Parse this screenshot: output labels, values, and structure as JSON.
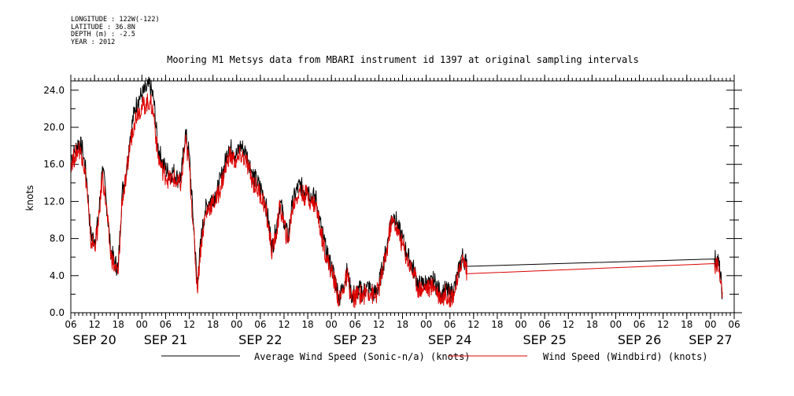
{
  "header": {
    "longitude": "LONGITUDE : 122W(-122)",
    "latitude": "LATITUDE : 36.8N",
    "depth": "DEPTH (m) : -2.5",
    "year": "YEAR : 2012"
  },
  "colors": {
    "series1": "#000000",
    "series2": "#dd0000",
    "axis": "#000000"
  },
  "chart_data": {
    "type": "line",
    "title": "Mooring M1 Metsys data from MBARI instrument id 1397 at original sampling intervals",
    "ylabel": "knots",
    "xlabel": "",
    "xlim": [
      0,
      168
    ],
    "ylim": [
      0,
      25
    ],
    "grid": false,
    "legend_position": "bottom",
    "y_ticks": [
      {
        "v": 0,
        "label": "0.0"
      },
      {
        "v": 4,
        "label": "4.0"
      },
      {
        "v": 8,
        "label": "8.0"
      },
      {
        "v": 12,
        "label": "12.0"
      },
      {
        "v": 16,
        "label": "16.0"
      },
      {
        "v": 20,
        "label": "20.0"
      },
      {
        "v": 24,
        "label": "24.0"
      }
    ],
    "x_ticks": [
      {
        "h": 0,
        "label": "06"
      },
      {
        "h": 6,
        "label": "12"
      },
      {
        "h": 12,
        "label": "18"
      },
      {
        "h": 18,
        "label": "00"
      },
      {
        "h": 24,
        "label": "06"
      },
      {
        "h": 30,
        "label": "12"
      },
      {
        "h": 36,
        "label": "18"
      },
      {
        "h": 42,
        "label": "00"
      },
      {
        "h": 48,
        "label": "06"
      },
      {
        "h": 54,
        "label": "12"
      },
      {
        "h": 60,
        "label": "18"
      },
      {
        "h": 66,
        "label": "00"
      },
      {
        "h": 72,
        "label": "06"
      },
      {
        "h": 78,
        "label": "12"
      },
      {
        "h": 84,
        "label": "18"
      },
      {
        "h": 90,
        "label": "00"
      },
      {
        "h": 96,
        "label": "06"
      },
      {
        "h": 102,
        "label": "12"
      },
      {
        "h": 108,
        "label": "18"
      },
      {
        "h": 114,
        "label": "00"
      },
      {
        "h": 120,
        "label": "06"
      },
      {
        "h": 126,
        "label": "12"
      },
      {
        "h": 132,
        "label": "18"
      },
      {
        "h": 138,
        "label": "00"
      },
      {
        "h": 144,
        "label": "06"
      },
      {
        "h": 150,
        "label": "12"
      },
      {
        "h": 156,
        "label": "18"
      },
      {
        "h": 162,
        "label": "00"
      },
      {
        "h": 168,
        "label": "06"
      }
    ],
    "x_date_labels": [
      {
        "h": 6,
        "label": "SEP 20"
      },
      {
        "h": 24,
        "label": "SEP 21"
      },
      {
        "h": 48,
        "label": "SEP 22"
      },
      {
        "h": 72,
        "label": "SEP 23"
      },
      {
        "h": 96,
        "label": "SEP 24"
      },
      {
        "h": 120,
        "label": "SEP 25"
      },
      {
        "h": 144,
        "label": "SEP 26"
      },
      {
        "h": 162,
        "label": "SEP 27"
      }
    ],
    "series": [
      {
        "name": "Average Wind Speed (Sonic-n/a) (knots)",
        "color": "#000000",
        "points": [
          [
            0,
            16.8
          ],
          [
            1,
            17.3
          ],
          [
            2,
            18.5
          ],
          [
            3,
            17.5
          ],
          [
            4,
            14.5
          ],
          [
            5,
            8.5
          ],
          [
            6,
            7.8
          ],
          [
            7,
            10
          ],
          [
            8,
            15.8
          ],
          [
            9,
            12
          ],
          [
            10,
            7
          ],
          [
            11,
            5.5
          ],
          [
            12,
            4.8
          ],
          [
            13,
            13
          ],
          [
            14,
            15
          ],
          [
            15,
            19
          ],
          [
            16,
            21.5
          ],
          [
            17,
            23
          ],
          [
            18,
            23.5
          ],
          [
            19,
            24
          ],
          [
            20,
            24.5
          ],
          [
            21,
            23
          ],
          [
            22,
            18
          ],
          [
            23,
            16.5
          ],
          [
            24,
            15.5
          ],
          [
            25,
            15
          ],
          [
            26,
            15.2
          ],
          [
            27,
            14.5
          ],
          [
            28,
            14.8
          ],
          [
            29,
            19.5
          ],
          [
            30,
            17
          ],
          [
            31,
            10
          ],
          [
            32,
            3
          ],
          [
            33,
            8
          ],
          [
            34,
            11
          ],
          [
            35,
            12
          ],
          [
            36,
            12.5
          ],
          [
            37,
            13
          ],
          [
            38,
            14.5
          ],
          [
            39,
            16
          ],
          [
            40,
            18
          ],
          [
            41,
            17.5
          ],
          [
            42,
            17
          ],
          [
            43,
            18
          ],
          [
            44,
            17.5
          ],
          [
            45,
            16.5
          ],
          [
            46,
            15
          ],
          [
            47,
            14.2
          ],
          [
            48,
            13.5
          ],
          [
            49,
            12.5
          ],
          [
            50,
            10
          ],
          [
            51,
            7
          ],
          [
            52,
            9
          ],
          [
            53,
            12
          ],
          [
            54,
            10
          ],
          [
            55,
            8
          ],
          [
            56,
            11.5
          ],
          [
            57,
            13
          ],
          [
            58,
            13.8
          ],
          [
            59,
            13.2
          ],
          [
            60,
            13.5
          ],
          [
            61,
            12.5
          ],
          [
            62,
            12.5
          ],
          [
            63,
            10
          ],
          [
            64,
            8
          ],
          [
            65,
            6
          ],
          [
            66,
            5
          ],
          [
            67,
            3.5
          ],
          [
            68,
            1.5
          ],
          [
            69,
            3
          ],
          [
            70,
            4.5
          ],
          [
            71,
            2
          ],
          [
            72,
            2
          ],
          [
            73,
            2.5
          ],
          [
            74,
            2.2
          ],
          [
            75,
            2.8
          ],
          [
            76,
            2.5
          ],
          [
            77,
            2
          ],
          [
            78,
            3
          ],
          [
            79,
            5
          ],
          [
            80,
            7
          ],
          [
            81,
            10
          ],
          [
            82,
            10.5
          ],
          [
            83,
            9
          ],
          [
            84,
            8
          ],
          [
            85,
            6.5
          ],
          [
            86,
            5.5
          ],
          [
            87,
            4.5
          ],
          [
            88,
            3
          ],
          [
            89,
            3
          ],
          [
            90,
            3.2
          ],
          [
            91,
            3
          ],
          [
            92,
            3.5
          ],
          [
            93,
            2.5
          ],
          [
            94,
            2
          ],
          [
            95,
            2.5
          ],
          [
            96,
            2
          ],
          [
            97,
            2.5
          ],
          [
            98,
            4
          ],
          [
            99,
            6.2
          ],
          [
            100,
            5.5
          ],
          [
            100.3,
            5
          ],
          [
            163,
            5.8
          ],
          [
            164,
            5.6
          ],
          [
            165,
            2.2
          ]
        ]
      },
      {
        "name": "Wind Speed (Windbird) (knots)",
        "color": "#dd0000",
        "points": [
          [
            0,
            16.2
          ],
          [
            1,
            16.8
          ],
          [
            2,
            17.8
          ],
          [
            3,
            16.8
          ],
          [
            4,
            13.8
          ],
          [
            5,
            7.8
          ],
          [
            6,
            7.2
          ],
          [
            7,
            9.4
          ],
          [
            8,
            15
          ],
          [
            9,
            11.4
          ],
          [
            10,
            6.5
          ],
          [
            11,
            5
          ],
          [
            12,
            4.2
          ],
          [
            13,
            12.3
          ],
          [
            14,
            14.3
          ],
          [
            15,
            18.2
          ],
          [
            16,
            20.5
          ],
          [
            17,
            21.8
          ],
          [
            18,
            22.2
          ],
          [
            19,
            22.5
          ],
          [
            20,
            22.8
          ],
          [
            21,
            21.5
          ],
          [
            22,
            17
          ],
          [
            23,
            15.6
          ],
          [
            24,
            14.8
          ],
          [
            25,
            14.3
          ],
          [
            26,
            14.5
          ],
          [
            27,
            13.8
          ],
          [
            28,
            14
          ],
          [
            29,
            18.5
          ],
          [
            30,
            16
          ],
          [
            31,
            9.4
          ],
          [
            32,
            2.6
          ],
          [
            33,
            7.5
          ],
          [
            34,
            10.4
          ],
          [
            35,
            11.4
          ],
          [
            36,
            11.8
          ],
          [
            37,
            12.3
          ],
          [
            38,
            13.7
          ],
          [
            39,
            15.2
          ],
          [
            40,
            17
          ],
          [
            41,
            16.6
          ],
          [
            42,
            16.2
          ],
          [
            43,
            17
          ],
          [
            44,
            16.6
          ],
          [
            45,
            15.6
          ],
          [
            46,
            14.2
          ],
          [
            47,
            13.5
          ],
          [
            48,
            12.8
          ],
          [
            49,
            11.8
          ],
          [
            50,
            9.4
          ],
          [
            51,
            6.5
          ],
          [
            52,
            8.5
          ],
          [
            53,
            11.4
          ],
          [
            54,
            9.5
          ],
          [
            55,
            7.5
          ],
          [
            56,
            11
          ],
          [
            57,
            12.4
          ],
          [
            58,
            13.1
          ],
          [
            59,
            12.6
          ],
          [
            60,
            12.8
          ],
          [
            61,
            11.8
          ],
          [
            62,
            11.8
          ],
          [
            63,
            9.4
          ],
          [
            64,
            7.5
          ],
          [
            65,
            5.5
          ],
          [
            66,
            4.5
          ],
          [
            67,
            3
          ],
          [
            68,
            1.2
          ],
          [
            69,
            2.6
          ],
          [
            70,
            4
          ],
          [
            71,
            1.6
          ],
          [
            72,
            1.6
          ],
          [
            73,
            2.1
          ],
          [
            74,
            1.8
          ],
          [
            75,
            2.4
          ],
          [
            76,
            2.1
          ],
          [
            77,
            1.6
          ],
          [
            78,
            2.6
          ],
          [
            79,
            4.5
          ],
          [
            80,
            6.5
          ],
          [
            81,
            9.5
          ],
          [
            82,
            9.8
          ],
          [
            83,
            8.4
          ],
          [
            84,
            7.4
          ],
          [
            85,
            6
          ],
          [
            86,
            5
          ],
          [
            87,
            4
          ],
          [
            88,
            2.6
          ],
          [
            89,
            2.6
          ],
          [
            90,
            2.8
          ],
          [
            91,
            2.6
          ],
          [
            92,
            3
          ],
          [
            93,
            2.1
          ],
          [
            94,
            1.6
          ],
          [
            95,
            2.1
          ],
          [
            96,
            1.6
          ],
          [
            97,
            2.1
          ],
          [
            98,
            3.5
          ],
          [
            99,
            5.8
          ],
          [
            100,
            5.2
          ],
          [
            100.3,
            4.2
          ],
          [
            163,
            5.3
          ],
          [
            164,
            5.1
          ],
          [
            165,
            1.6
          ]
        ]
      }
    ]
  }
}
